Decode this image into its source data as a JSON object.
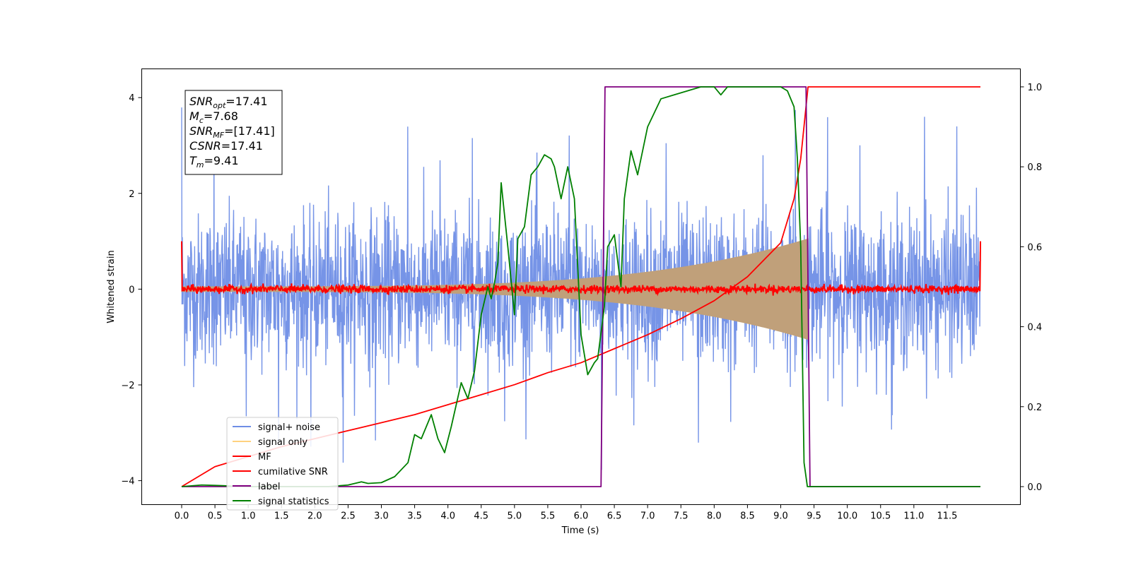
{
  "chart_data": {
    "type": "line",
    "title": "",
    "xlabel": "Time (s)",
    "ylabel": "Whitened strain",
    "y2label": "",
    "xlim": [
      -0.6,
      12.6
    ],
    "ylim": [
      -4.5,
      4.6
    ],
    "y2lim": [
      -0.045,
      1.045
    ],
    "x_ticks": [
      0.0,
      0.5,
      1.0,
      1.5,
      2.0,
      2.5,
      3.0,
      3.5,
      4.0,
      4.5,
      5.0,
      5.5,
      6.0,
      6.5,
      7.0,
      7.5,
      8.0,
      8.5,
      9.0,
      9.5,
      10.0,
      10.5,
      11.0,
      11.5
    ],
    "x_tick_labels": [
      "0.0",
      "0.5",
      "1.0",
      "1.5",
      "2.0",
      "2.5",
      "3.0",
      "3.5",
      "4.0",
      "4.5",
      "5.0",
      "5.5",
      "6.0",
      "6.5",
      "7.0",
      "7.5",
      "8.0",
      "8.5",
      "9.0",
      "9.5",
      "10.0",
      "10.5",
      "11.0",
      "11.5"
    ],
    "y_ticks": [
      -4,
      -2,
      0,
      2,
      4
    ],
    "y_tick_labels": [
      "−4",
      "−2",
      "0",
      "2",
      "4"
    ],
    "y2_ticks": [
      0.0,
      0.2,
      0.4,
      0.6,
      0.8,
      1.0
    ],
    "y2_tick_labels": [
      "0.0",
      "0.2",
      "0.4",
      "0.6",
      "0.8",
      "1.0"
    ],
    "grid": false,
    "legend_position": "lower-left",
    "info_box": {
      "lines": [
        {
          "sym": "SNR",
          "sub": "opt",
          "val": "=17.41"
        },
        {
          "sym": "M",
          "sub": "c",
          "val": "=7.68"
        },
        {
          "sym": "SNR",
          "sub": "MF",
          "val": "=[17.41]"
        },
        {
          "sym": "CSNR",
          "sub": "",
          "val": "=17.41"
        },
        {
          "sym": "T",
          "sub": "m",
          "val": "=9.41"
        }
      ]
    },
    "series": [
      {
        "name": "signal+ noise",
        "color": "#6f8ee6",
        "axis": "left",
        "kind": "noise",
        "x_range": [
          0.0,
          12.0
        ],
        "std": 0.78,
        "peak_amplitude": 4.0
      },
      {
        "name": "signal only",
        "color": "#ffd27f",
        "axis": "left",
        "kind": "chirp",
        "x_range": [
          0.0,
          9.41
        ],
        "amplitude_start": 0.05,
        "amplitude_end": 1.05
      },
      {
        "name": "MF",
        "color": "#ff0000",
        "axis": "left",
        "kind": "noise",
        "x_range": [
          0.0,
          12.0
        ],
        "std": 0.04,
        "edge_value": 1.0
      },
      {
        "name": "cumilative SNR",
        "color": "#ff0000",
        "axis": "right",
        "x": [
          0.0,
          0.5,
          1.0,
          1.5,
          2.0,
          2.5,
          3.0,
          3.5,
          4.0,
          4.5,
          5.0,
          5.5,
          6.0,
          6.5,
          7.0,
          7.5,
          8.0,
          8.5,
          9.0,
          9.2,
          9.3,
          9.41,
          10.0,
          11.0,
          12.0
        ],
        "y": [
          0.0,
          0.05,
          0.075,
          0.1,
          0.12,
          0.14,
          0.16,
          0.18,
          0.205,
          0.23,
          0.255,
          0.285,
          0.31,
          0.345,
          0.38,
          0.42,
          0.465,
          0.525,
          0.61,
          0.72,
          0.82,
          1.0,
          1.0,
          1.0,
          1.0
        ]
      },
      {
        "name": "label",
        "color": "#800080",
        "axis": "right",
        "x": [
          0.0,
          6.3,
          6.36,
          9.38,
          9.44,
          12.0
        ],
        "y": [
          0.0,
          0.0,
          1.0,
          1.0,
          0.0,
          0.0
        ]
      },
      {
        "name": "signal statistics",
        "color": "#008000",
        "axis": "right",
        "x": [
          0.0,
          0.3,
          0.5,
          1.0,
          1.5,
          2.0,
          2.2,
          2.5,
          2.7,
          2.8,
          3.0,
          3.2,
          3.4,
          3.5,
          3.6,
          3.75,
          3.85,
          3.95,
          4.05,
          4.2,
          4.3,
          4.4,
          4.5,
          4.6,
          4.65,
          4.7,
          4.75,
          4.8,
          4.9,
          5.0,
          5.05,
          5.15,
          5.25,
          5.35,
          5.45,
          5.55,
          5.6,
          5.7,
          5.8,
          5.9,
          6.0,
          6.1,
          6.2,
          6.25,
          6.35,
          6.4,
          6.5,
          6.6,
          6.65,
          6.75,
          6.85,
          7.0,
          7.2,
          7.4,
          7.6,
          7.8,
          7.9,
          8.0,
          8.1,
          8.2,
          8.3,
          8.4,
          9.0,
          9.1,
          9.2,
          9.25,
          9.3,
          9.35,
          9.4,
          9.45,
          12.0
        ],
        "y": [
          0.0,
          0.004,
          0.003,
          0.0,
          0.0,
          0.0,
          0.0,
          0.004,
          0.012,
          0.008,
          0.01,
          0.025,
          0.06,
          0.13,
          0.12,
          0.18,
          0.12,
          0.085,
          0.15,
          0.26,
          0.22,
          0.29,
          0.43,
          0.5,
          0.47,
          0.51,
          0.56,
          0.76,
          0.6,
          0.43,
          0.62,
          0.65,
          0.78,
          0.8,
          0.83,
          0.82,
          0.8,
          0.72,
          0.8,
          0.72,
          0.38,
          0.28,
          0.31,
          0.32,
          0.45,
          0.6,
          0.63,
          0.5,
          0.72,
          0.84,
          0.78,
          0.9,
          0.97,
          0.98,
          0.99,
          1.0,
          1.0,
          1.0,
          0.98,
          1.0,
          1.0,
          1.0,
          1.0,
          0.99,
          0.95,
          0.82,
          0.6,
          0.06,
          0.0,
          0.0,
          0.0
        ]
      }
    ]
  }
}
